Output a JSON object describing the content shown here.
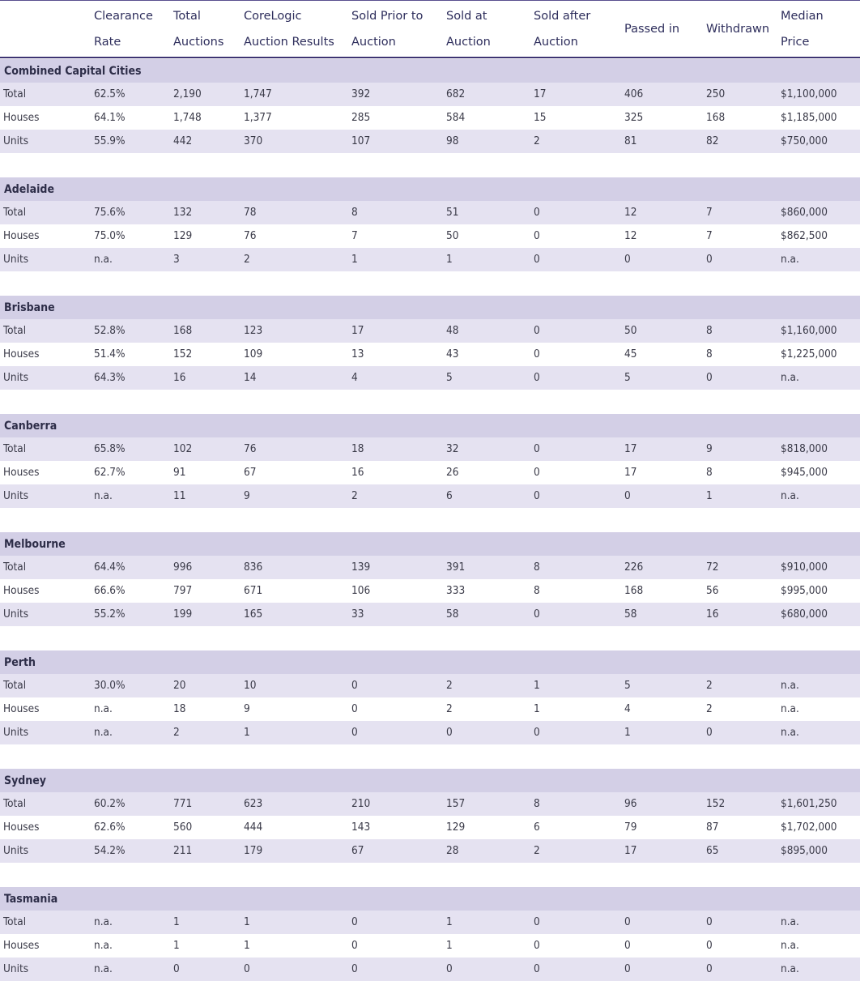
{
  "columns": [
    {
      "label": "",
      "key": "label"
    },
    {
      "label": "Clearance\nRate",
      "key": "clearance_rate"
    },
    {
      "label": "Total\nAuctions",
      "key": "total_auctions"
    },
    {
      "label": "CoreLogic\nAuction Results",
      "key": "corelogic_results"
    },
    {
      "label": "Sold Prior to\nAuction",
      "key": "sold_prior"
    },
    {
      "label": "Sold at\nAuction",
      "key": "sold_at"
    },
    {
      "label": "Sold after\nAuction",
      "key": "sold_after"
    },
    {
      "label": "Passed in",
      "key": "passed_in"
    },
    {
      "label": "Withdrawn",
      "key": "withdrawn"
    },
    {
      "label": "Median\nPrice",
      "key": "median_price"
    }
  ],
  "sections": [
    {
      "title": "Combined Capital Cities",
      "rows": [
        {
          "label": "Total",
          "clearance_rate": "62.5%",
          "total_auctions": "2,190",
          "corelogic_results": "1,747",
          "sold_prior": "392",
          "sold_at": "682",
          "sold_after": "17",
          "passed_in": "406",
          "withdrawn": "250",
          "median_price": "$1,100,000"
        },
        {
          "label": "Houses",
          "clearance_rate": "64.1%",
          "total_auctions": "1,748",
          "corelogic_results": "1,377",
          "sold_prior": "285",
          "sold_at": "584",
          "sold_after": "15",
          "passed_in": "325",
          "withdrawn": "168",
          "median_price": "$1,185,000"
        },
        {
          "label": "Units",
          "clearance_rate": "55.9%",
          "total_auctions": "442",
          "corelogic_results": "370",
          "sold_prior": "107",
          "sold_at": "98",
          "sold_after": "2",
          "passed_in": "81",
          "withdrawn": "82",
          "median_price": "$750,000"
        }
      ]
    },
    {
      "title": "Adelaide",
      "rows": [
        {
          "label": "Total",
          "clearance_rate": "75.6%",
          "total_auctions": "132",
          "corelogic_results": "78",
          "sold_prior": "8",
          "sold_at": "51",
          "sold_after": "0",
          "passed_in": "12",
          "withdrawn": "7",
          "median_price": "$860,000"
        },
        {
          "label": "Houses",
          "clearance_rate": "75.0%",
          "total_auctions": "129",
          "corelogic_results": "76",
          "sold_prior": "7",
          "sold_at": "50",
          "sold_after": "0",
          "passed_in": "12",
          "withdrawn": "7",
          "median_price": "$862,500"
        },
        {
          "label": "Units",
          "clearance_rate": "n.a.",
          "total_auctions": "3",
          "corelogic_results": "2",
          "sold_prior": "1",
          "sold_at": "1",
          "sold_after": "0",
          "passed_in": "0",
          "withdrawn": "0",
          "median_price": "n.a."
        }
      ]
    },
    {
      "title": "Brisbane",
      "rows": [
        {
          "label": "Total",
          "clearance_rate": "52.8%",
          "total_auctions": "168",
          "corelogic_results": "123",
          "sold_prior": "17",
          "sold_at": "48",
          "sold_after": "0",
          "passed_in": "50",
          "withdrawn": "8",
          "median_price": "$1,160,000"
        },
        {
          "label": "Houses",
          "clearance_rate": "51.4%",
          "total_auctions": "152",
          "corelogic_results": "109",
          "sold_prior": "13",
          "sold_at": "43",
          "sold_after": "0",
          "passed_in": "45",
          "withdrawn": "8",
          "median_price": "$1,225,000"
        },
        {
          "label": "Units",
          "clearance_rate": "64.3%",
          "total_auctions": "16",
          "corelogic_results": "14",
          "sold_prior": "4",
          "sold_at": "5",
          "sold_after": "0",
          "passed_in": "5",
          "withdrawn": "0",
          "median_price": "n.a."
        }
      ]
    },
    {
      "title": "Canberra",
      "rows": [
        {
          "label": "Total",
          "clearance_rate": "65.8%",
          "total_auctions": "102",
          "corelogic_results": "76",
          "sold_prior": "18",
          "sold_at": "32",
          "sold_after": "0",
          "passed_in": "17",
          "withdrawn": "9",
          "median_price": "$818,000"
        },
        {
          "label": "Houses",
          "clearance_rate": "62.7%",
          "total_auctions": "91",
          "corelogic_results": "67",
          "sold_prior": "16",
          "sold_at": "26",
          "sold_after": "0",
          "passed_in": "17",
          "withdrawn": "8",
          "median_price": "$945,000"
        },
        {
          "label": "Units",
          "clearance_rate": "n.a.",
          "total_auctions": "11",
          "corelogic_results": "9",
          "sold_prior": "2",
          "sold_at": "6",
          "sold_after": "0",
          "passed_in": "0",
          "withdrawn": "1",
          "median_price": "n.a."
        }
      ]
    },
    {
      "title": "Melbourne",
      "rows": [
        {
          "label": "Total",
          "clearance_rate": "64.4%",
          "total_auctions": "996",
          "corelogic_results": "836",
          "sold_prior": "139",
          "sold_at": "391",
          "sold_after": "8",
          "passed_in": "226",
          "withdrawn": "72",
          "median_price": "$910,000"
        },
        {
          "label": "Houses",
          "clearance_rate": "66.6%",
          "total_auctions": "797",
          "corelogic_results": "671",
          "sold_prior": "106",
          "sold_at": "333",
          "sold_after": "8",
          "passed_in": "168",
          "withdrawn": "56",
          "median_price": "$995,000"
        },
        {
          "label": "Units",
          "clearance_rate": "55.2%",
          "total_auctions": "199",
          "corelogic_results": "165",
          "sold_prior": "33",
          "sold_at": "58",
          "sold_after": "0",
          "passed_in": "58",
          "withdrawn": "16",
          "median_price": "$680,000"
        }
      ]
    },
    {
      "title": "Perth",
      "rows": [
        {
          "label": "Total",
          "clearance_rate": "30.0%",
          "total_auctions": "20",
          "corelogic_results": "10",
          "sold_prior": "0",
          "sold_at": "2",
          "sold_after": "1",
          "passed_in": "5",
          "withdrawn": "2",
          "median_price": "n.a."
        },
        {
          "label": "Houses",
          "clearance_rate": "n.a.",
          "total_auctions": "18",
          "corelogic_results": "9",
          "sold_prior": "0",
          "sold_at": "2",
          "sold_after": "1",
          "passed_in": "4",
          "withdrawn": "2",
          "median_price": "n.a."
        },
        {
          "label": "Units",
          "clearance_rate": "n.a.",
          "total_auctions": "2",
          "corelogic_results": "1",
          "sold_prior": "0",
          "sold_at": "0",
          "sold_after": "0",
          "passed_in": "1",
          "withdrawn": "0",
          "median_price": "n.a."
        }
      ]
    },
    {
      "title": "Sydney",
      "rows": [
        {
          "label": "Total",
          "clearance_rate": "60.2%",
          "total_auctions": "771",
          "corelogic_results": "623",
          "sold_prior": "210",
          "sold_at": "157",
          "sold_after": "8",
          "passed_in": "96",
          "withdrawn": "152",
          "median_price": "$1,601,250"
        },
        {
          "label": "Houses",
          "clearance_rate": "62.6%",
          "total_auctions": "560",
          "corelogic_results": "444",
          "sold_prior": "143",
          "sold_at": "129",
          "sold_after": "6",
          "passed_in": "79",
          "withdrawn": "87",
          "median_price": "$1,702,000"
        },
        {
          "label": "Units",
          "clearance_rate": "54.2%",
          "total_auctions": "211",
          "corelogic_results": "179",
          "sold_prior": "67",
          "sold_at": "28",
          "sold_after": "2",
          "passed_in": "17",
          "withdrawn": "65",
          "median_price": "$895,000"
        }
      ]
    },
    {
      "title": "Tasmania",
      "rows": [
        {
          "label": "Total",
          "clearance_rate": "n.a.",
          "total_auctions": "1",
          "corelogic_results": "1",
          "sold_prior": "0",
          "sold_at": "1",
          "sold_after": "0",
          "passed_in": "0",
          "withdrawn": "0",
          "median_price": "n.a."
        },
        {
          "label": "Houses",
          "clearance_rate": "n.a.",
          "total_auctions": "1",
          "corelogic_results": "1",
          "sold_prior": "0",
          "sold_at": "1",
          "sold_after": "0",
          "passed_in": "0",
          "withdrawn": "0",
          "median_price": "n.a."
        },
        {
          "label": "Units",
          "clearance_rate": "n.a.",
          "total_auctions": "0",
          "corelogic_results": "0",
          "sold_prior": "0",
          "sold_at": "0",
          "sold_after": "0",
          "passed_in": "0",
          "withdrawn": "0",
          "median_price": "n.a."
        }
      ]
    }
  ]
}
